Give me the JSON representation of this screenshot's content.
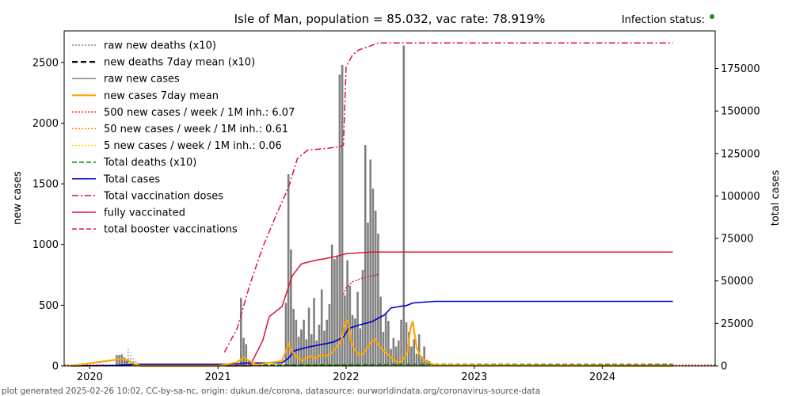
{
  "chart_data": {
    "type": "bar",
    "title": "Isle of Man, population = 85.032, vac rate: 78.919%",
    "status_label": "Infection status:",
    "status_color": "#1a8a1a",
    "ylabel_left": "new cases",
    "ylabel_right": "total cases",
    "footer": "plot generated 2025-02-26 10:02, CC-by-sa-nc, origin: dukun.de/corona, datasource: ourworldindata.org/coronavirus-source-data",
    "x_range": [
      2019.8,
      2024.88
    ],
    "ylim_left": [
      0,
      2760
    ],
    "ylim_right": [
      0,
      197143
    ],
    "x_ticks": [
      {
        "value": 2020,
        "label": "2020"
      },
      {
        "value": 2021,
        "label": "2021"
      },
      {
        "value": 2022,
        "label": "2022"
      },
      {
        "value": 2023,
        "label": "2023"
      },
      {
        "value": 2024,
        "label": "2024"
      }
    ],
    "y_ticks_left": [
      {
        "value": 0,
        "label": "0"
      },
      {
        "value": 500,
        "label": "500"
      },
      {
        "value": 1000,
        "label": "1000"
      },
      {
        "value": 1500,
        "label": "1500"
      },
      {
        "value": 2000,
        "label": "2000"
      },
      {
        "value": 2500,
        "label": "2500"
      }
    ],
    "y_ticks_right": [
      {
        "value": 0,
        "label": "0"
      },
      {
        "value": 25000,
        "label": "25000"
      },
      {
        "value": 50000,
        "label": "50000"
      },
      {
        "value": 75000,
        "label": "75000"
      },
      {
        "value": 100000,
        "label": "100000"
      },
      {
        "value": 125000,
        "label": "125000"
      },
      {
        "value": 150000,
        "label": "150000"
      },
      {
        "value": 175000,
        "label": "175000"
      }
    ],
    "legend": [
      {
        "label": "raw new deaths (x10)",
        "color": "#808080",
        "dash": "2,2",
        "width": 1.5
      },
      {
        "label": "new deaths 7day mean (x10)",
        "color": "#000000",
        "dash": "7,4",
        "width": 2.2
      },
      {
        "label": "raw new cases",
        "color": "#808080",
        "dash": "",
        "width": 1.5
      },
      {
        "label": "new cases 7day mean",
        "color": "#ffa500",
        "dash": "",
        "width": 2.2
      },
      {
        "label": "500 new cases / week / 1M inh.: 6.07",
        "color": "#ff0000",
        "dash": "2,2",
        "width": 1.5
      },
      {
        "label": "50 new cases / week / 1M inh.: 0.61",
        "color": "#ff8c00",
        "dash": "2,2",
        "width": 1.5
      },
      {
        "label": "5 new cases / week / 1M inh.: 0.06",
        "color": "#ffd700",
        "dash": "2,2",
        "width": 1.5
      },
      {
        "label": "Total deaths (x10)",
        "color": "#008000",
        "dash": "6,3",
        "width": 1.5
      },
      {
        "label": "Total cases",
        "color": "#0000cd",
        "dash": "",
        "width": 1.5
      },
      {
        "label": "Total vaccination doses",
        "color": "#dc143c",
        "dash": "8,3,2,3",
        "width": 1.5
      },
      {
        "label": "fully vaccinated",
        "color": "#dc143c",
        "dash": "",
        "width": 1.5
      },
      {
        "label": "total booster vaccinations",
        "color": "#dc143c",
        "dash": "6,3",
        "width": 1.5
      }
    ],
    "bars_new_cases": {
      "x": [
        2020.21,
        2020.23,
        2020.25,
        2020.27,
        2020.29,
        2020.31,
        2021.18,
        2021.2,
        2021.22,
        2021.24,
        2021.53,
        2021.55,
        2021.57,
        2021.59,
        2021.61,
        2021.63,
        2021.65,
        2021.67,
        2021.69,
        2021.71,
        2021.73,
        2021.75,
        2021.77,
        2021.79,
        2021.81,
        2021.83,
        2021.85,
        2021.87,
        2021.89,
        2021.91,
        2021.93,
        2021.95,
        2021.97,
        2021.99,
        2022.01,
        2022.03,
        2022.05,
        2022.07,
        2022.09,
        2022.11,
        2022.13,
        2022.15,
        2022.17,
        2022.19,
        2022.21,
        2022.23,
        2022.25,
        2022.27,
        2022.29,
        2022.31,
        2022.33,
        2022.35,
        2022.37,
        2022.39,
        2022.41,
        2022.43,
        2022.45,
        2022.47,
        2022.49,
        2022.51,
        2022.53,
        2022.55,
        2022.57,
        2022.59,
        2022.61,
        2022.63,
        2022.65
      ],
      "values": [
        90,
        90,
        95,
        70,
        50,
        20,
        560,
        230,
        180,
        50,
        520,
        1580,
        960,
        470,
        380,
        240,
        300,
        380,
        220,
        480,
        260,
        560,
        210,
        340,
        630,
        290,
        380,
        510,
        1000,
        880,
        910,
        2400,
        2480,
        580,
        870,
        660,
        420,
        390,
        610,
        310,
        790,
        1820,
        1180,
        1700,
        1460,
        1280,
        1090,
        570,
        280,
        430,
        370,
        140,
        230,
        160,
        210,
        380,
        2640,
        360,
        280,
        160,
        220,
        100,
        260,
        80,
        160,
        50,
        40
      ]
    },
    "raw_new_deaths": {
      "x": [
        2020.28,
        2020.3,
        2020.32,
        2020.34,
        2020.36
      ],
      "values": [
        40,
        140,
        110,
        60,
        50
      ]
    },
    "new_cases_7day_mean": {
      "x": [
        2019.85,
        2020.2,
        2020.25,
        2020.3,
        2020.35,
        2020.4,
        2021.0,
        2021.15,
        2021.2,
        2021.25,
        2021.3,
        2021.5,
        2021.53,
        2021.55,
        2021.57,
        2021.6,
        2021.63,
        2021.66,
        2021.7,
        2021.73,
        2021.76,
        2021.8,
        2021.84,
        2021.88,
        2021.92,
        2021.96,
        2022.0,
        2022.02,
        2022.04,
        2022.07,
        2022.1,
        2022.13,
        2022.16,
        2022.2,
        2022.23,
        2022.26,
        2022.3,
        2022.34,
        2022.38,
        2022.42,
        2022.45,
        2022.48,
        2022.5,
        2022.52,
        2022.55,
        2022.58,
        2022.62,
        2022.66,
        2022.7,
        2024.55
      ],
      "values": [
        0,
        50,
        60,
        45,
        15,
        0,
        0,
        30,
        70,
        40,
        10,
        40,
        120,
        180,
        130,
        90,
        60,
        40,
        70,
        80,
        60,
        90,
        80,
        100,
        150,
        200,
        380,
        350,
        200,
        130,
        90,
        100,
        140,
        200,
        220,
        160,
        120,
        80,
        40,
        30,
        60,
        120,
        300,
        370,
        150,
        80,
        40,
        20,
        5,
        0
      ]
    },
    "total_cases": {
      "x": [
        2019.85,
        2020.2,
        2020.35,
        2021.0,
        2021.15,
        2021.2,
        2021.5,
        2021.55,
        2021.6,
        2021.7,
        2021.8,
        2021.9,
        2021.98,
        2022.02,
        2022.1,
        2022.2,
        2022.3,
        2022.35,
        2022.42,
        2022.47,
        2022.52,
        2022.6,
        2022.7,
        2024.55
      ],
      "values": [
        0,
        300,
        1000,
        1000,
        1200,
        1700,
        1800,
        4500,
        9000,
        11000,
        12500,
        14000,
        17000,
        22000,
        24000,
        26000,
        30000,
        34000,
        35000,
        35500,
        37000,
        37500,
        38000,
        38000
      ]
    },
    "total_vaccination_doses": {
      "x": [
        2021.05,
        2021.15,
        2021.25,
        2021.35,
        2021.45,
        2021.55,
        2021.62,
        2021.7,
        2021.85,
        2021.95,
        2021.98,
        2022.0,
        2022.05,
        2022.1,
        2022.18,
        2022.25,
        2024.55
      ],
      "values": [
        8000,
        22000,
        48000,
        70000,
        88000,
        105000,
        122000,
        127000,
        128000,
        129000,
        130000,
        176000,
        183000,
        186000,
        188000,
        190000,
        190000
      ]
    },
    "fully_vaccinated": {
      "x": [
        2021.05,
        2021.25,
        2021.35,
        2021.4,
        2021.5,
        2021.58,
        2021.65,
        2021.75,
        2021.9,
        2022.0,
        2022.1,
        2022.2,
        2022.3,
        2024.55
      ],
      "values": [
        0,
        0,
        15000,
        29000,
        35000,
        53000,
        60000,
        62000,
        64000,
        66000,
        66500,
        67000,
        67000,
        67000
      ]
    },
    "total_booster": {
      "x": [
        2021.98,
        2022.0,
        2022.05,
        2022.12,
        2022.2,
        2022.26
      ],
      "values": [
        42000,
        46000,
        49500,
        51500,
        53000,
        54000
      ]
    },
    "total_deaths_x10": {
      "x": [
        2019.85,
        2020.3,
        2020.5,
        2021.1,
        2021.3,
        2022.0,
        2022.5,
        2024.55
      ],
      "values": [
        0,
        200,
        240,
        240,
        500,
        600,
        900,
        900
      ]
    }
  }
}
